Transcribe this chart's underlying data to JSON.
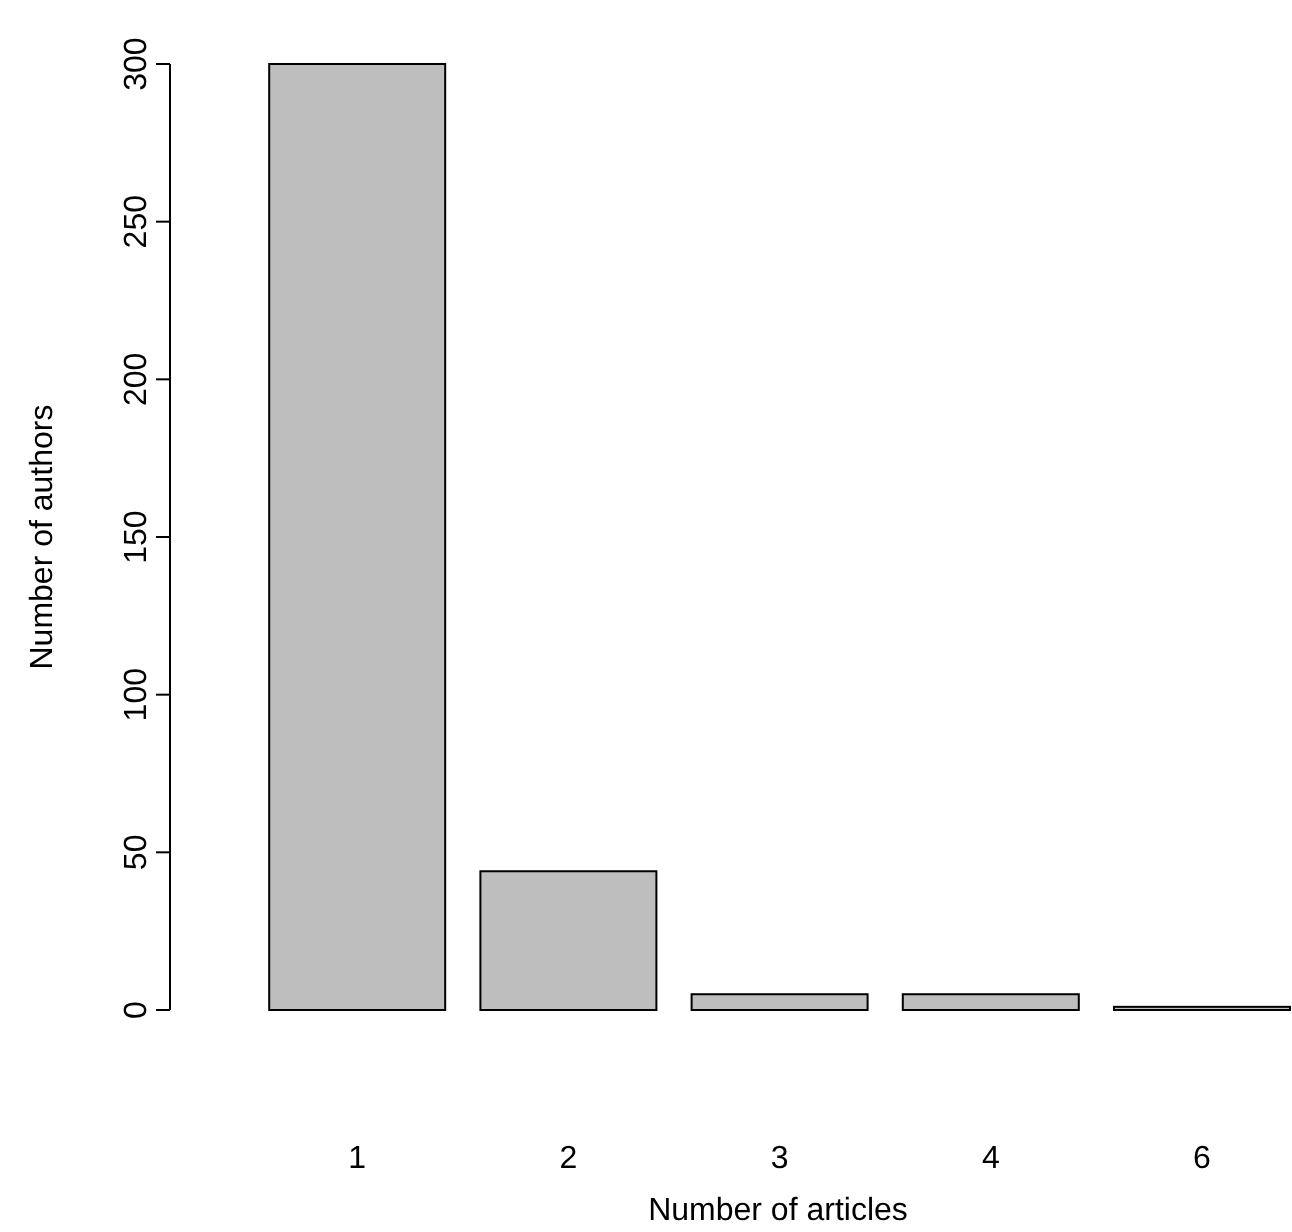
{
  "chart_data": {
    "type": "bar",
    "xlabel": "Number of articles",
    "ylabel": "Number of authors",
    "categories": [
      "1",
      "2",
      "3",
      "4",
      "6"
    ],
    "values": [
      300,
      44,
      5,
      5,
      1
    ],
    "color": "#bebebe",
    "ylim": [
      0,
      300
    ],
    "yticks": [
      0,
      50,
      100,
      150,
      200,
      250,
      300
    ],
    "grid": false
  }
}
